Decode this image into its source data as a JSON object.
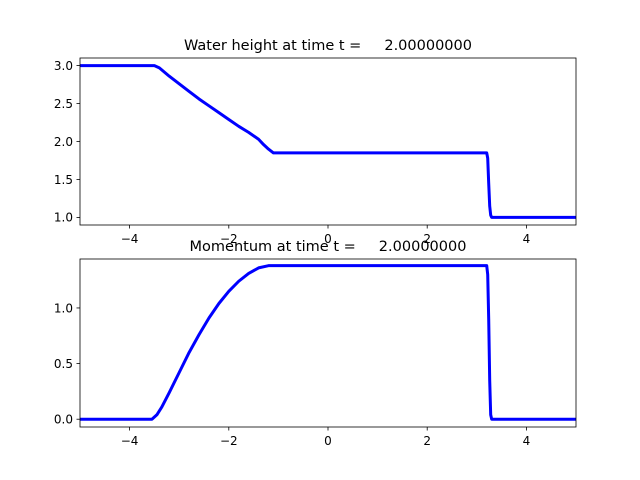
{
  "chart_data": [
    {
      "type": "line",
      "title": "Water height at time t =     2.00000000",
      "xlim": [
        -5,
        5
      ],
      "ylim": [
        0.9,
        3.1
      ],
      "xticks": [
        -4,
        -2,
        0,
        2,
        4
      ],
      "xtick_labels": [
        "−4",
        "−2",
        "0",
        "2",
        "4"
      ],
      "yticks": [
        1.0,
        1.5,
        2.0,
        2.5,
        3.0
      ],
      "ytick_labels": [
        "1.0",
        "1.5",
        "2.0",
        "2.5",
        "3.0"
      ],
      "grid": false,
      "color": "#0000ff",
      "series": [
        {
          "x": [
            -5.0,
            -3.5,
            -3.4,
            -3.2,
            -3.0,
            -2.8,
            -2.6,
            -2.4,
            -2.2,
            -2.0,
            -1.8,
            -1.6,
            -1.4,
            -1.3,
            -1.2,
            -1.1,
            0.0,
            1.0,
            2.0,
            3.2,
            3.22,
            3.24,
            3.26,
            3.28,
            3.3,
            5.0
          ],
          "y": [
            3.0,
            3.0,
            2.97,
            2.86,
            2.76,
            2.66,
            2.56,
            2.47,
            2.38,
            2.29,
            2.2,
            2.12,
            2.03,
            1.96,
            1.9,
            1.85,
            1.85,
            1.85,
            1.85,
            1.85,
            1.78,
            1.45,
            1.15,
            1.03,
            1.0,
            1.0
          ]
        }
      ]
    },
    {
      "type": "line",
      "title": "Momentum at time t =     2.00000000",
      "xlim": [
        -5,
        5
      ],
      "ylim": [
        -0.07,
        1.44
      ],
      "xticks": [
        -4,
        -2,
        0,
        2,
        4
      ],
      "xtick_labels": [
        "−4",
        "−2",
        "0",
        "2",
        "4"
      ],
      "yticks": [
        0.0,
        0.5,
        1.0
      ],
      "ytick_labels": [
        "0.0",
        "0.5",
        "1.0"
      ],
      "grid": false,
      "color": "#0000ff",
      "series": [
        {
          "x": [
            -5.0,
            -3.55,
            -3.45,
            -3.35,
            -3.2,
            -3.0,
            -2.8,
            -2.6,
            -2.4,
            -2.2,
            -2.0,
            -1.8,
            -1.6,
            -1.4,
            -1.2,
            -1.1,
            0.0,
            1.0,
            2.0,
            3.2,
            3.22,
            3.24,
            3.26,
            3.28,
            3.3,
            5.0
          ],
          "y": [
            0.0,
            0.0,
            0.04,
            0.11,
            0.24,
            0.42,
            0.6,
            0.76,
            0.91,
            1.04,
            1.15,
            1.24,
            1.31,
            1.36,
            1.38,
            1.38,
            1.38,
            1.38,
            1.38,
            1.38,
            1.3,
            0.9,
            0.35,
            0.04,
            0.0,
            0.0
          ]
        }
      ]
    }
  ]
}
